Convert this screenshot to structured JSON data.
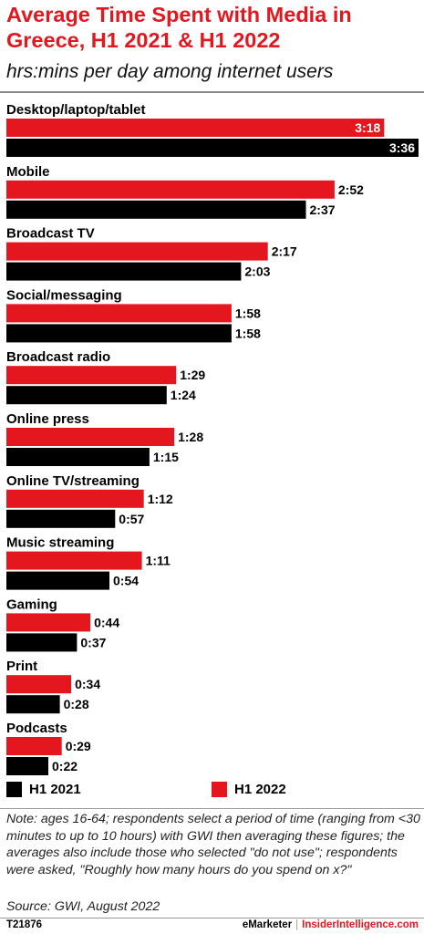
{
  "header": {
    "title": "Average Time Spent with Media in Greece, H1 2021 & H1 2022",
    "subtitle": "hrs:mins per day among internet users"
  },
  "colors": {
    "h1_2022": "#e4161e",
    "h1_2021": "#000000",
    "title": "#e4161e"
  },
  "legend": {
    "h1_2021_label": "H1 2021",
    "h1_2022_label": "H1 2022"
  },
  "chart_data": {
    "type": "bar",
    "orientation": "horizontal",
    "unit": "hrs:mins",
    "categories": [
      "Desktop/laptop/tablet",
      "Mobile",
      "Broadcast TV",
      "Social/messaging",
      "Broadcast radio",
      "Online press",
      "Online TV/streaming",
      "Music streaming",
      "Gaming",
      "Print",
      "Podcasts"
    ],
    "series": [
      {
        "name": "H1 2022",
        "color": "#e4161e",
        "values": [
          "3:18",
          "2:52",
          "2:17",
          "1:58",
          "1:29",
          "1:28",
          "1:12",
          "1:11",
          "0:44",
          "0:34",
          "0:29"
        ]
      },
      {
        "name": "H1 2021",
        "color": "#000000",
        "values": [
          "3:36",
          "2:37",
          "2:03",
          "1:58",
          "1:24",
          "1:15",
          "0:57",
          "0:54",
          "0:37",
          "0:28",
          "0:22"
        ]
      }
    ],
    "xlim": [
      "0:00",
      "3:36"
    ],
    "grid": false,
    "legend_position": "bottom"
  },
  "notes": {
    "note": "Note: ages 16-64; respondents select a period of time (ranging from <30 minutes to up to 10 hours) with GWI then averaging these figures; the averages also include those who selected \"do not use\"; respondents were asked, \"Roughly how many hours do you spend on x?\"",
    "source": "Source:  GWI, August 2022"
  },
  "footer": {
    "chart_id": "T21876",
    "brand_emarketer": "eMarketer",
    "brand_separator": "|",
    "brand_insider": "InsiderIntelligence.com"
  }
}
